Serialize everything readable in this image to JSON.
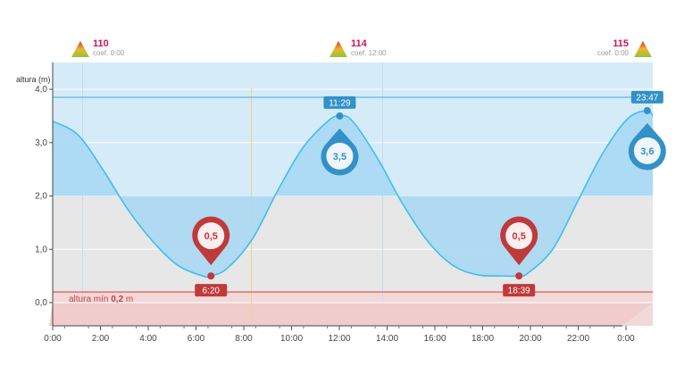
{
  "chart_data": {
    "type": "area",
    "ylabel": "altura (m)",
    "xlim": [
      0,
      24
    ],
    "ylim": [
      0,
      4
    ],
    "x_ticks": [
      "0:00",
      "2:00",
      "4:00",
      "6:00",
      "8:00",
      "10:00",
      "12:00",
      "14:00",
      "16:00",
      "18:00",
      "20:00",
      "22:00",
      "0:00"
    ],
    "y_ticks": [
      "0,0",
      "1,0",
      "2,0",
      "3,0",
      "4,0"
    ],
    "series": [
      {
        "x": [
          0,
          1,
          2,
          3,
          4,
          5,
          6,
          6.33,
          7,
          8,
          9,
          10,
          11,
          11.48,
          12,
          13,
          14,
          15,
          16,
          17,
          18,
          18.65,
          19,
          20,
          21,
          22,
          23,
          23.78,
          24
        ],
        "y": [
          3.4,
          3.15,
          2.5,
          1.75,
          1.15,
          0.7,
          0.5,
          0.5,
          0.65,
          1.2,
          2.1,
          2.9,
          3.4,
          3.5,
          3.4,
          2.7,
          1.85,
          1.15,
          0.7,
          0.52,
          0.5,
          0.5,
          0.55,
          1.0,
          1.9,
          2.8,
          3.45,
          3.6,
          3.5
        ]
      }
    ],
    "extremes": [
      {
        "kind": "low",
        "time": "6:20",
        "value": "0,5",
        "x": 6.33,
        "y": 0.5
      },
      {
        "kind": "high",
        "time": "11:29",
        "value": "3,5",
        "x": 11.48,
        "y": 3.5
      },
      {
        "kind": "low",
        "time": "18:39",
        "value": "0,5",
        "x": 18.65,
        "y": 0.5
      },
      {
        "kind": "high",
        "time": "23:47",
        "value": "3,6",
        "x": 23.78,
        "y": 3.6
      }
    ],
    "coefficients": [
      {
        "value": "110",
        "label": "coef. 0:00",
        "x": 0
      },
      {
        "value": "114",
        "label": "coef. 12:00",
        "x": 12
      },
      {
        "value": "115",
        "label": "coef. 0:00",
        "x": 24
      }
    ],
    "min_height": {
      "text": "altura mín",
      "value": "0,2",
      "unit": "m",
      "y": 0.2
    },
    "max_line_y": 3.85,
    "band_y": [
      2,
      4
    ],
    "colors": {
      "wave": "#3fbfef",
      "fill": "#a8d8f3",
      "high": "#3391c7",
      "low": "#c0393b",
      "coef": "#c2185b",
      "minline": "#e04848",
      "grid": "#b5b5b5",
      "background": "#e7e7e7",
      "band": "#d6ebf8"
    }
  }
}
